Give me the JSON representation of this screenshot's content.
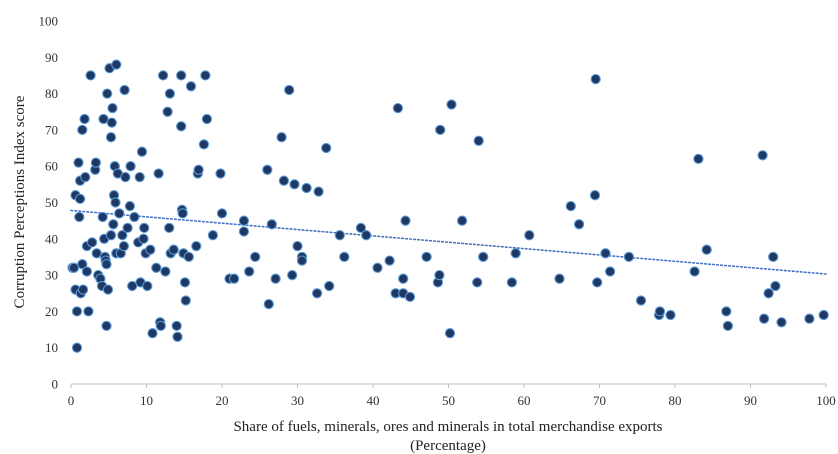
{
  "chart_data": {
    "type": "scatter",
    "title": "",
    "xlabel": "Share of fuels, minerals, ores and minerals in total merchandise exports",
    "xlabel_sub": "(Percentage)",
    "ylabel": "Corruption Perceptions Index score",
    "xlim": [
      0,
      100
    ],
    "ylim": [
      0,
      100
    ],
    "x_ticks": [
      0,
      10,
      20,
      30,
      40,
      50,
      60,
      70,
      80,
      90,
      100
    ],
    "y_ticks": [
      0,
      10,
      20,
      30,
      40,
      50,
      60,
      70,
      80,
      90,
      100
    ],
    "grid": "none",
    "legend": "none",
    "trendline": {
      "type": "linear",
      "start": [
        0,
        47.8
      ],
      "end": [
        100,
        30.3
      ],
      "style": "dotted"
    },
    "colors": {
      "marker_fill": "#1f3864",
      "marker_edge": "#5b9bd5",
      "trendline": "#4472c4",
      "axis": "#bfbfbf"
    },
    "points": [
      [
        0.2,
        32
      ],
      [
        0.4,
        32
      ],
      [
        0.6,
        52
      ],
      [
        0.6,
        26
      ],
      [
        0.8,
        20
      ],
      [
        0.8,
        10
      ],
      [
        1.0,
        61
      ],
      [
        1.1,
        46
      ],
      [
        1.2,
        51
      ],
      [
        1.2,
        56
      ],
      [
        1.3,
        25
      ],
      [
        1.5,
        33
      ],
      [
        1.5,
        70
      ],
      [
        1.6,
        26
      ],
      [
        1.8,
        73
      ],
      [
        1.9,
        57
      ],
      [
        2.1,
        31
      ],
      [
        2.1,
        38
      ],
      [
        2.3,
        20
      ],
      [
        2.6,
        85
      ],
      [
        2.8,
        39
      ],
      [
        3.2,
        59
      ],
      [
        3.3,
        61
      ],
      [
        3.4,
        36
      ],
      [
        3.6,
        30
      ],
      [
        3.9,
        29
      ],
      [
        4.1,
        27
      ],
      [
        4.2,
        46
      ],
      [
        4.3,
        73
      ],
      [
        4.4,
        40
      ],
      [
        4.5,
        35
      ],
      [
        4.6,
        34
      ],
      [
        4.7,
        33
      ],
      [
        4.7,
        16
      ],
      [
        4.8,
        80
      ],
      [
        4.9,
        26
      ],
      [
        5.1,
        87
      ],
      [
        5.3,
        68
      ],
      [
        5.3,
        41
      ],
      [
        5.4,
        72
      ],
      [
        5.5,
        76
      ],
      [
        5.6,
        44
      ],
      [
        5.7,
        52
      ],
      [
        5.8,
        60
      ],
      [
        5.9,
        50
      ],
      [
        6.0,
        88
      ],
      [
        6.0,
        36
      ],
      [
        6.2,
        58
      ],
      [
        6.4,
        47
      ],
      [
        6.6,
        36
      ],
      [
        6.8,
        41
      ],
      [
        7.0,
        38
      ],
      [
        7.1,
        81
      ],
      [
        7.2,
        57
      ],
      [
        7.5,
        43
      ],
      [
        7.8,
        49
      ],
      [
        7.9,
        60
      ],
      [
        8.1,
        27
      ],
      [
        8.4,
        46
      ],
      [
        8.9,
        39
      ],
      [
        9.1,
        57
      ],
      [
        9.2,
        28
      ],
      [
        9.4,
        64
      ],
      [
        9.6,
        40
      ],
      [
        9.7,
        43
      ],
      [
        9.9,
        36
      ],
      [
        10.1,
        27
      ],
      [
        10.5,
        37
      ],
      [
        10.8,
        14
      ],
      [
        11.3,
        32
      ],
      [
        11.6,
        58
      ],
      [
        11.8,
        17
      ],
      [
        11.9,
        16
      ],
      [
        12.2,
        85
      ],
      [
        12.5,
        31
      ],
      [
        12.8,
        75
      ],
      [
        13.0,
        43
      ],
      [
        13.1,
        80
      ],
      [
        13.2,
        36
      ],
      [
        13.6,
        37
      ],
      [
        14.0,
        16
      ],
      [
        14.1,
        13
      ],
      [
        14.6,
        85
      ],
      [
        14.6,
        71
      ],
      [
        14.7,
        48
      ],
      [
        14.8,
        47
      ],
      [
        14.9,
        36
      ],
      [
        15.1,
        28
      ],
      [
        15.2,
        23
      ],
      [
        15.6,
        35
      ],
      [
        15.9,
        82
      ],
      [
        16.6,
        38
      ],
      [
        16.8,
        58
      ],
      [
        16.9,
        59
      ],
      [
        17.6,
        66
      ],
      [
        17.8,
        85
      ],
      [
        18.0,
        73
      ],
      [
        18.8,
        41
      ],
      [
        19.8,
        58
      ],
      [
        20.0,
        47
      ],
      [
        21.0,
        29
      ],
      [
        21.6,
        29
      ],
      [
        22.9,
        45
      ],
      [
        22.9,
        42
      ],
      [
        23.6,
        31
      ],
      [
        24.4,
        35
      ],
      [
        26.0,
        59
      ],
      [
        26.2,
        22
      ],
      [
        26.6,
        44
      ],
      [
        27.1,
        29
      ],
      [
        27.9,
        68
      ],
      [
        28.2,
        56
      ],
      [
        28.9,
        81
      ],
      [
        29.3,
        30
      ],
      [
        29.6,
        55
      ],
      [
        30.0,
        38
      ],
      [
        30.6,
        35
      ],
      [
        30.6,
        34
      ],
      [
        31.2,
        54
      ],
      [
        32.6,
        25
      ],
      [
        32.8,
        53
      ],
      [
        33.8,
        65
      ],
      [
        34.2,
        27
      ],
      [
        35.6,
        41
      ],
      [
        36.2,
        35
      ],
      [
        38.4,
        43
      ],
      [
        39.1,
        41
      ],
      [
        40.6,
        32
      ],
      [
        42.2,
        34
      ],
      [
        43.0,
        25
      ],
      [
        43.3,
        76
      ],
      [
        44.0,
        25
      ],
      [
        44.0,
        29
      ],
      [
        44.3,
        45
      ],
      [
        44.9,
        24
      ],
      [
        47.1,
        35
      ],
      [
        48.6,
        28
      ],
      [
        48.8,
        30
      ],
      [
        48.9,
        70
      ],
      [
        50.2,
        14
      ],
      [
        50.4,
        77
      ],
      [
        51.8,
        45
      ],
      [
        53.8,
        28
      ],
      [
        54.0,
        67
      ],
      [
        54.6,
        35
      ],
      [
        58.4,
        28
      ],
      [
        58.9,
        36
      ],
      [
        60.7,
        41
      ],
      [
        64.7,
        29
      ],
      [
        66.2,
        49
      ],
      [
        67.3,
        44
      ],
      [
        69.4,
        52
      ],
      [
        69.5,
        84
      ],
      [
        69.7,
        28
      ],
      [
        70.8,
        36
      ],
      [
        71.4,
        31
      ],
      [
        73.9,
        35
      ],
      [
        75.5,
        23
      ],
      [
        77.9,
        19
      ],
      [
        78.0,
        20
      ],
      [
        79.4,
        19
      ],
      [
        82.6,
        31
      ],
      [
        83.1,
        62
      ],
      [
        84.2,
        37
      ],
      [
        86.8,
        20
      ],
      [
        87.0,
        16
      ],
      [
        91.6,
        63
      ],
      [
        91.8,
        18
      ],
      [
        92.4,
        25
      ],
      [
        93.0,
        35
      ],
      [
        93.3,
        27
      ],
      [
        94.1,
        17
      ],
      [
        97.8,
        18
      ],
      [
        99.7,
        19
      ]
    ]
  }
}
